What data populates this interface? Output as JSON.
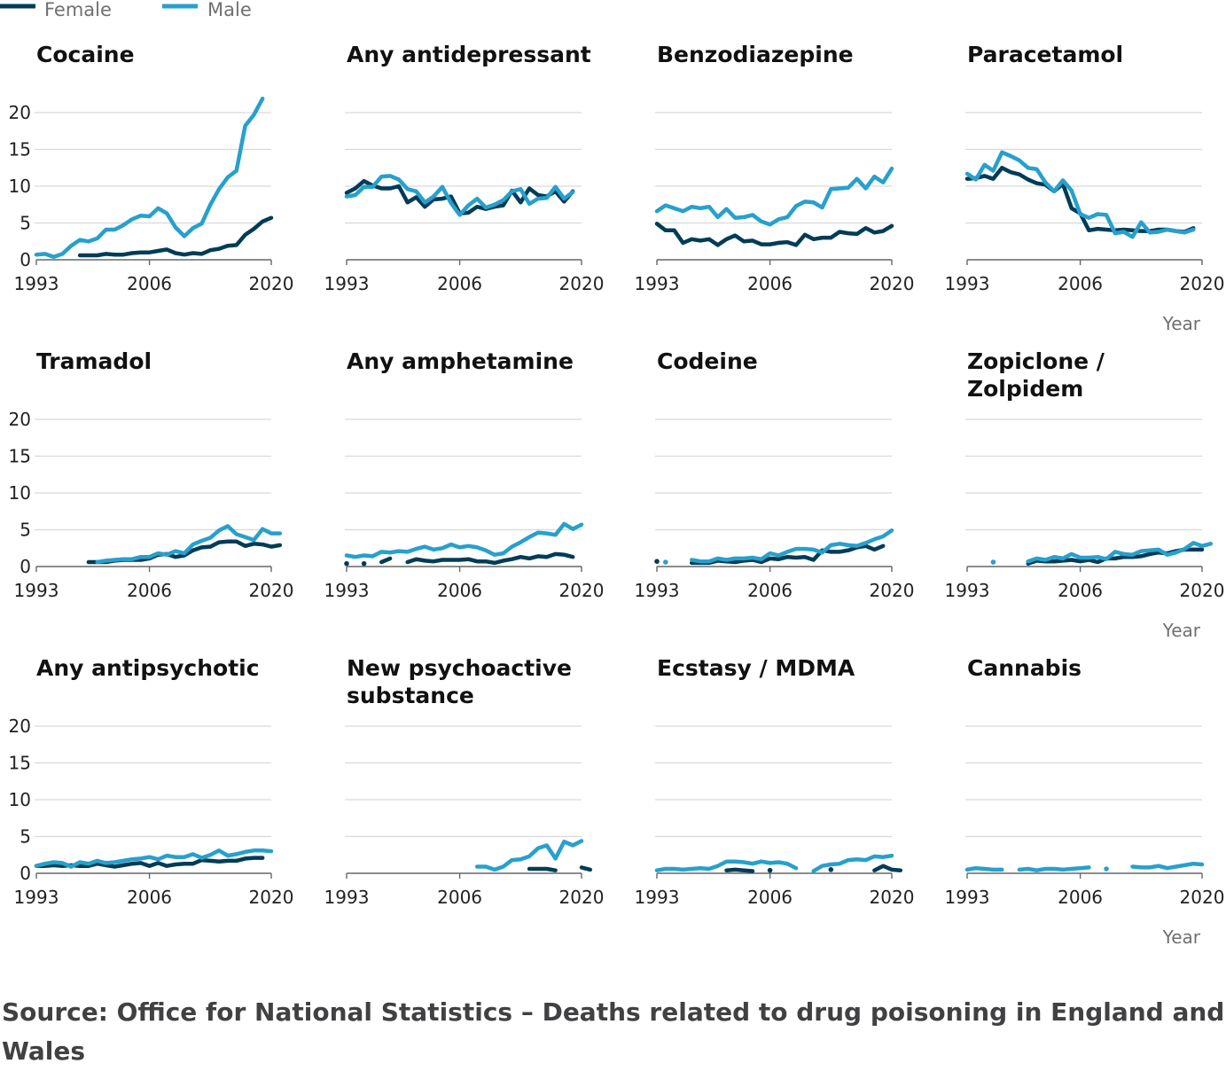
{
  "legend": [
    {
      "name": "Female",
      "color": "#003c57"
    },
    {
      "name": "Male",
      "color": "#27a0cc"
    }
  ],
  "source": "Source: Office for National Statistics – Deaths related to drug poisoning in England and Wales",
  "chart_data": {
    "type": "line",
    "layout": "small-multiples",
    "xlabel": "Year",
    "ylim": [
      0,
      22
    ],
    "yticks": [
      0,
      5,
      10,
      15,
      20
    ],
    "xticks": [
      1993,
      2006,
      2020
    ],
    "xlim": [
      1993,
      2020
    ],
    "colors": {
      "Female": "#003c57",
      "Male": "#27a0cc"
    },
    "panels": [
      {
        "title": "Cocaine",
        "series": [
          {
            "name": "Female",
            "start": 1998,
            "values": [
              0.6,
              0.6,
              0.6,
              0.8,
              0.7,
              0.7,
              0.9,
              1.0,
              1.0,
              1.2,
              1.4,
              0.9,
              0.7,
              0.9,
              0.8,
              1.3,
              1.5,
              1.9,
              2.0,
              3.4,
              4.2,
              5.2,
              5.7
            ]
          },
          {
            "name": "Male",
            "start": 1993,
            "values": [
              0.7,
              0.8,
              0.4,
              0.8,
              1.9,
              2.7,
              2.5,
              2.9,
              4.1,
              4.1,
              4.7,
              5.5,
              6.0,
              5.9,
              7.0,
              6.3,
              4.4,
              3.2,
              4.3,
              4.9,
              7.5,
              9.6,
              11.2,
              12.1,
              18.2,
              19.7,
              21.9
            ]
          }
        ]
      },
      {
        "title": "Any antidepressant",
        "series": [
          {
            "name": "Female",
            "start": 1993,
            "values": [
              9.1,
              9.7,
              10.7,
              10.1,
              9.7,
              9.7,
              10.0,
              7.8,
              8.5,
              7.2,
              8.2,
              8.3,
              8.6,
              6.3,
              6.4,
              7.2,
              6.9,
              7.2,
              7.4,
              9.4,
              7.8,
              9.7,
              8.8,
              8.6,
              9.3,
              7.9,
              9.3
            ]
          },
          {
            "name": "Male",
            "start": 1993,
            "values": [
              8.6,
              8.8,
              9.9,
              9.9,
              11.3,
              11.4,
              10.9,
              9.6,
              9.3,
              7.8,
              8.6,
              9.9,
              7.7,
              6.1,
              7.4,
              8.3,
              7.1,
              7.5,
              8.1,
              9.3,
              9.6,
              7.6,
              8.3,
              8.4,
              9.9,
              8.3,
              9.2
            ]
          }
        ]
      },
      {
        "title": "Benzodiazepine",
        "series": [
          {
            "name": "Female",
            "start": 1993,
            "values": [
              4.9,
              4.0,
              4.0,
              2.3,
              2.8,
              2.6,
              2.8,
              2.0,
              2.8,
              3.3,
              2.5,
              2.6,
              2.1,
              2.1,
              2.3,
              2.4,
              2.0,
              3.4,
              2.8,
              3.0,
              3.0,
              3.8,
              3.6,
              3.5,
              4.3,
              3.7,
              3.9,
              4.6
            ]
          },
          {
            "name": "Male",
            "start": 1993,
            "values": [
              6.6,
              7.4,
              7.0,
              6.6,
              7.2,
              7.0,
              7.2,
              5.8,
              6.9,
              5.7,
              5.8,
              6.1,
              5.2,
              4.8,
              5.5,
              5.8,
              7.3,
              7.9,
              7.8,
              7.1,
              9.6,
              9.7,
              9.8,
              11.0,
              9.7,
              11.3,
              10.5,
              12.4
            ]
          }
        ]
      },
      {
        "title": "Paracetamol",
        "series": [
          {
            "name": "Female",
            "start": 1993,
            "values": [
              11.0,
              11.1,
              11.4,
              11.0,
              12.5,
              11.9,
              11.6,
              10.9,
              10.4,
              10.2,
              9.3,
              10.3,
              7.0,
              6.3,
              4.0,
              4.2,
              4.1,
              4.0,
              4.1,
              4.0,
              3.9,
              3.9,
              4.1,
              4.1,
              3.9,
              3.8,
              4.3
            ]
          },
          {
            "name": "Male",
            "start": 1993,
            "values": [
              11.7,
              10.9,
              12.9,
              12.1,
              14.6,
              14.1,
              13.5,
              12.5,
              12.3,
              10.5,
              9.3,
              10.8,
              9.4,
              6.2,
              5.7,
              6.2,
              6.1,
              3.6,
              3.8,
              3.1,
              5.1,
              3.7,
              3.8,
              4.1,
              3.9,
              3.7,
              4.1
            ]
          }
        ]
      },
      {
        "title": "Tramadol",
        "series": [
          {
            "name": "Female",
            "start": 1999,
            "values": [
              0.6,
              0.6,
              0.6,
              0.8,
              0.9,
              0.9,
              0.9,
              1.1,
              1.6,
              1.7,
              1.3,
              1.5,
              2.2,
              2.6,
              2.7,
              3.3,
              3.4,
              3.4,
              2.8,
              3.1,
              3.0,
              2.7,
              2.9
            ]
          },
          {
            "name": "Male",
            "start": 2000,
            "values": [
              0.6,
              0.8,
              0.9,
              1.0,
              1.0,
              1.3,
              1.3,
              1.8,
              1.6,
              2.1,
              1.8,
              3.0,
              3.5,
              3.9,
              4.9,
              5.5,
              4.4,
              4.0,
              3.6,
              5.1,
              4.5,
              4.5
            ]
          }
        ]
      },
      {
        "title": "Any amphetamine",
        "series": [
          {
            "name": "Female",
            "start": 1993,
            "values": [
              0.4,
              null,
              0.4,
              null,
              0.6,
              1.1,
              null,
              0.6,
              1.0,
              0.8,
              0.7,
              0.9,
              0.9,
              0.9,
              1.0,
              0.7,
              0.7,
              0.5,
              0.8,
              1.0,
              1.3,
              1.1,
              1.4,
              1.3,
              1.7,
              1.6,
              1.3
            ]
          },
          {
            "name": "Male",
            "start": 1993,
            "values": [
              1.5,
              1.3,
              1.5,
              1.4,
              2.0,
              1.9,
              2.1,
              2.0,
              2.4,
              2.7,
              2.3,
              2.5,
              3.0,
              2.6,
              2.8,
              2.6,
              2.2,
              1.6,
              1.8,
              2.7,
              3.3,
              4.0,
              4.6,
              4.5,
              4.3,
              5.8,
              5.1,
              5.7
            ]
          }
        ]
      },
      {
        "title": "Codeine",
        "series": [
          {
            "name": "Female",
            "start": 1993,
            "values": [
              0.7,
              null,
              null,
              null,
              0.5,
              0.5,
              0.5,
              0.8,
              0.7,
              0.6,
              0.8,
              0.9,
              0.6,
              1.1,
              1.0,
              1.3,
              1.2,
              1.3,
              0.9,
              2.2,
              2.0,
              2.0,
              2.2,
              2.6,
              2.8,
              2.3,
              2.8
            ]
          },
          {
            "name": "Male",
            "start": 1993,
            "values": [
              null,
              0.6,
              null,
              null,
              0.9,
              0.7,
              0.7,
              1.1,
              0.9,
              1.1,
              1.1,
              1.2,
              1.0,
              1.8,
              1.5,
              2.0,
              2.4,
              2.4,
              2.3,
              1.9,
              2.9,
              3.1,
              2.9,
              2.8,
              3.2,
              3.7,
              4.1,
              4.9
            ]
          }
        ]
      },
      {
        "title": "Zopiclone / Zolpidem",
        "series": [
          {
            "name": "Female",
            "start": 2000,
            "values": [
              0.4,
              0.8,
              0.7,
              0.7,
              0.8,
              0.9,
              0.7,
              0.9,
              0.6,
              1.1,
              1.1,
              1.3,
              1.3,
              1.4,
              1.7,
              1.9,
              1.8,
              2.1,
              2.3,
              2.3,
              2.3
            ]
          },
          {
            "name": "Male",
            "start": 1996,
            "values": [
              0.6,
              null,
              null,
              null,
              0.7,
              1.1,
              0.9,
              1.3,
              1.1,
              1.7,
              1.2,
              1.2,
              1.3,
              1.0,
              2.0,
              1.7,
              1.6,
              2.1,
              2.2,
              2.3,
              1.6,
              1.9,
              2.4,
              3.2,
              2.8,
              3.1
            ]
          }
        ]
      },
      {
        "title": "Any antipsychotic",
        "series": [
          {
            "name": "Female",
            "start": 1993,
            "values": [
              1.0,
              1.0,
              1.1,
              1.0,
              1.1,
              1.0,
              1.0,
              1.3,
              1.1,
              0.9,
              1.1,
              1.3,
              1.4,
              1.0,
              1.4,
              1.0,
              1.2,
              1.3,
              1.3,
              1.8,
              1.7,
              1.6,
              1.7,
              1.7,
              2.0,
              2.1,
              2.1
            ]
          },
          {
            "name": "Male",
            "start": 1993,
            "values": [
              1.0,
              1.3,
              1.5,
              1.4,
              0.9,
              1.5,
              1.3,
              1.7,
              1.4,
              1.5,
              1.7,
              1.9,
              2.0,
              2.2,
              1.9,
              2.4,
              2.2,
              2.2,
              2.6,
              2.1,
              2.5,
              3.1,
              2.4,
              2.6,
              2.9,
              3.1,
              3.1,
              3.0
            ]
          }
        ]
      },
      {
        "title": "New psychoactive substance",
        "series": [
          {
            "name": "Female",
            "start": 2014,
            "values": [
              0.6,
              0.6,
              0.6,
              0.4,
              null,
              null,
              0.8,
              0.5
            ]
          },
          {
            "name": "Male",
            "start": 2008,
            "values": [
              0.9,
              0.9,
              0.5,
              0.9,
              1.8,
              1.9,
              2.3,
              3.4,
              3.8,
              2.0,
              4.3,
              3.8,
              4.4
            ]
          }
        ]
      },
      {
        "title": "Ecstasy / MDMA",
        "series": [
          {
            "name": "Female",
            "start": 2001,
            "values": [
              0.4,
              0.5,
              0.4,
              0.3,
              null,
              0.4,
              null,
              null,
              null,
              null,
              null,
              null,
              0.5,
              null,
              null,
              null,
              null,
              0.4,
              1.0,
              0.5,
              0.4
            ]
          },
          {
            "name": "Male",
            "start": 1993,
            "values": [
              0.4,
              0.6,
              0.6,
              0.5,
              0.6,
              0.7,
              0.6,
              1.0,
              1.6,
              1.6,
              1.5,
              1.3,
              1.6,
              1.4,
              1.5,
              1.3,
              0.7,
              null,
              0.3,
              1.0,
              1.2,
              1.3,
              1.8,
              1.9,
              1.8,
              2.3,
              2.2,
              2.4
            ]
          }
        ]
      },
      {
        "title": "Cannabis",
        "series": [
          {
            "name": "Male",
            "start": 1993,
            "values": [
              0.5,
              0.7,
              0.6,
              0.5,
              0.5,
              null,
              0.5,
              0.6,
              0.4,
              0.6,
              0.6,
              0.5,
              0.6,
              0.7,
              0.8,
              null,
              0.6,
              null,
              null,
              0.9,
              0.8,
              0.8,
              1.0,
              0.7,
              0.9,
              1.1,
              1.3,
              1.2
            ]
          }
        ]
      }
    ]
  }
}
